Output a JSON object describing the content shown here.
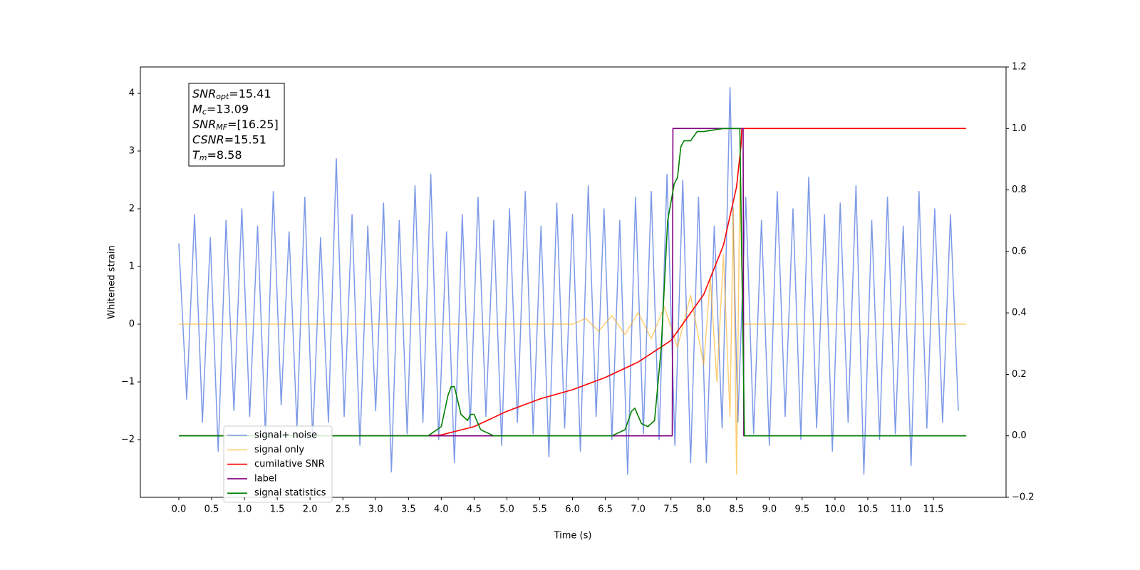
{
  "chart_data": {
    "type": "line",
    "xlabel": "Time (s)",
    "ylabel": "Whitened strain",
    "xlim": [
      -0.586,
      12.607
    ],
    "ylim": [
      -3.0,
      4.457
    ],
    "y2lim": [
      -0.2,
      1.2
    ],
    "xticks": [
      {
        "value": 0,
        "label": "0.0"
      },
      0.5,
      {
        "value": 1,
        "label": "1.0"
      },
      1.5,
      {
        "value": 2,
        "label": "2.0"
      },
      2.5,
      {
        "value": 3,
        "label": "3.0"
      },
      3.5,
      {
        "value": 4,
        "label": "4.0"
      },
      4.5,
      {
        "value": 5,
        "label": "5.0"
      },
      5.5,
      {
        "value": 6,
        "label": "6.0"
      },
      6.5,
      {
        "value": 7,
        "label": "7.0"
      },
      7.5,
      {
        "value": 8,
        "label": "8.0"
      },
      8.5,
      {
        "value": 9,
        "label": "9.0"
      },
      9.5,
      {
        "value": 10,
        "label": "10.0"
      },
      10.5,
      {
        "value": 11,
        "label": "11.0"
      },
      11.5
    ],
    "yticks": [
      {
        "value": -2,
        "label": "−2"
      },
      {
        "value": -1,
        "label": "−1"
      },
      0,
      1,
      2,
      3,
      4
    ],
    "y2ticks": [
      {
        "value": -0.2,
        "label": "−0.2"
      },
      {
        "value": 0,
        "label": "0.0"
      },
      0.2,
      0.4,
      0.6,
      0.8,
      {
        "value": 1,
        "label": "1.0"
      },
      1.2
    ],
    "annotations": [
      {
        "main": "SNR",
        "sub": "opt",
        "text": "=15.41"
      },
      {
        "main": "M",
        "sub": "c",
        "text": "=13.09"
      },
      {
        "main": "SNR",
        "sub": "MF",
        "text": "=[16.25]"
      },
      {
        "main": "CSNR",
        "text": "=15.51"
      },
      {
        "main": "T",
        "sub": "m",
        "text": "=8.58"
      }
    ],
    "series": [
      {
        "name": "signal+ noise",
        "color": "#6f8ee6",
        "x": [
          0,
          0.12,
          0.24,
          0.36,
          0.48,
          0.6,
          0.72,
          0.84,
          0.96,
          1.08,
          1.2,
          1.32,
          1.44,
          1.56,
          1.68,
          1.8,
          1.92,
          2.04,
          2.16,
          2.28,
          2.4,
          2.52,
          2.64,
          2.76,
          2.88,
          3,
          3.12,
          3.24,
          3.36,
          3.48,
          3.6,
          3.72,
          3.84,
          3.96,
          4.08,
          4.2,
          4.32,
          4.44,
          4.56,
          4.68,
          4.8,
          4.92,
          5.04,
          5.16,
          5.28,
          5.4,
          5.52,
          5.64,
          5.76,
          5.88,
          6,
          6.12,
          6.24,
          6.36,
          6.48,
          6.6,
          6.72,
          6.84,
          6.96,
          7.08,
          7.2,
          7.32,
          7.44,
          7.56,
          7.68,
          7.8,
          7.92,
          8.04,
          8.16,
          8.28,
          8.4,
          8.52,
          8.64,
          8.76,
          8.88,
          9,
          9.12,
          9.24,
          9.36,
          9.48,
          9.6,
          9.72,
          9.84,
          9.96,
          10.08,
          10.2,
          10.32,
          10.44,
          10.56,
          10.68,
          10.8,
          10.92,
          11.04,
          11.16,
          11.28,
          11.4,
          11.52,
          11.64,
          11.76,
          11.88
        ],
        "values": [
          1.4,
          -1.3,
          1.9,
          -1.7,
          1.5,
          -2.2,
          1.8,
          -1.5,
          2.0,
          -1.6,
          1.7,
          -1.9,
          2.3,
          -1.4,
          1.6,
          -1.8,
          2.2,
          -2.0,
          1.5,
          -1.7,
          2.87,
          -1.6,
          1.9,
          -2.1,
          1.7,
          -1.5,
          2.1,
          -2.56,
          1.8,
          -1.9,
          2.4,
          -1.7,
          2.6,
          -2.0,
          1.6,
          -2.4,
          1.9,
          -1.8,
          2.2,
          -1.6,
          1.8,
          -2.1,
          2.0,
          -1.7,
          2.3,
          -1.9,
          1.7,
          -2.3,
          2.1,
          -1.8,
          1.9,
          -2.2,
          2.4,
          -1.6,
          2.0,
          -2.0,
          1.8,
          -2.6,
          2.2,
          -1.9,
          2.3,
          -2.0,
          2.6,
          -2.1,
          2.5,
          -2.4,
          2.2,
          -2.4,
          1.7,
          -1.8,
          4.1,
          -1.7,
          2.2,
          -1.9,
          1.8,
          -2.1,
          2.3,
          -1.6,
          2.0,
          -2.0,
          2.55,
          -1.8,
          1.9,
          -2.2,
          2.1,
          -1.7,
          2.4,
          -2.6,
          1.8,
          -2.0,
          2.2,
          -1.9,
          1.7,
          -2.45,
          2.3,
          -1.8,
          2.0,
          -1.7,
          1.9,
          -1.5
        ]
      },
      {
        "name": "signal only",
        "color": "#ffa500",
        "x": [
          0,
          6.0,
          6.2,
          6.4,
          6.6,
          6.8,
          7.0,
          7.2,
          7.4,
          7.6,
          7.8,
          8.0,
          8.1,
          8.2,
          8.3,
          8.4,
          8.45,
          8.5,
          8.55,
          8.6,
          12.0
        ],
        "values": [
          0,
          0,
          0.1,
          -0.12,
          0.15,
          -0.18,
          0.2,
          -0.25,
          0.3,
          -0.4,
          0.5,
          -0.7,
          0.8,
          -1.0,
          1.2,
          -1.6,
          2.0,
          -2.6,
          2.5,
          0,
          0
        ]
      },
      {
        "name": "cumilative SNR",
        "color": "#ff0000",
        "axis": "y2",
        "x": [
          0,
          3.8,
          4.0,
          4.5,
          5.0,
          5.5,
          6.0,
          6.5,
          7.0,
          7.5,
          8.0,
          8.3,
          8.5,
          8.57,
          8.58,
          12.0
        ],
        "values": [
          0,
          0,
          0.003,
          0.03,
          0.08,
          0.12,
          0.15,
          0.19,
          0.24,
          0.31,
          0.46,
          0.62,
          0.81,
          0.95,
          1.0,
          1.0
        ]
      },
      {
        "name": "label",
        "color": "#800080",
        "axis": "y2",
        "x": [
          0,
          7.52,
          7.53,
          8.6,
          8.61,
          12.0
        ],
        "values": [
          0,
          0,
          1,
          1,
          0,
          0
        ]
      },
      {
        "name": "signal statistics",
        "color": "#008000",
        "axis": "y2",
        "x": [
          0,
          3.8,
          4.0,
          4.1,
          4.15,
          4.2,
          4.3,
          4.4,
          4.45,
          4.5,
          4.6,
          4.8,
          6.6,
          6.8,
          6.9,
          6.95,
          7.05,
          7.15,
          7.25,
          7.35,
          7.45,
          7.55,
          7.6,
          7.65,
          7.7,
          7.8,
          7.9,
          8.0,
          8.3,
          8.55,
          8.62,
          12.0
        ],
        "values": [
          0,
          0,
          0.03,
          0.13,
          0.16,
          0.16,
          0.07,
          0.05,
          0.07,
          0.07,
          0.02,
          0,
          0,
          0.02,
          0.08,
          0.09,
          0.04,
          0.03,
          0.05,
          0.28,
          0.7,
          0.82,
          0.84,
          0.94,
          0.96,
          0.96,
          0.99,
          0.99,
          1.0,
          1.0,
          0,
          0
        ]
      }
    ]
  }
}
